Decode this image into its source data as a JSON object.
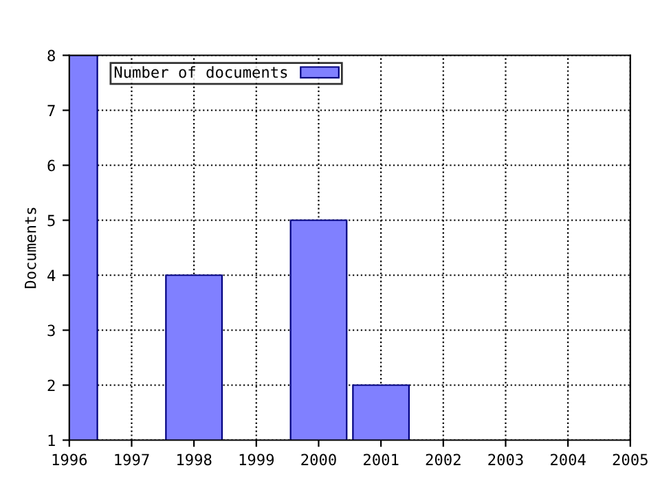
{
  "chart_data": {
    "type": "bar",
    "ylabel": "Documents",
    "x": [
      1996,
      1998,
      2000,
      2001
    ],
    "series": [
      {
        "name": "Number of documents",
        "color": "#8080ff",
        "values": [
          8,
          4,
          5,
          2
        ]
      }
    ],
    "xlim": [
      1996,
      2005
    ],
    "xticks": [
      1996,
      1997,
      1998,
      1999,
      2000,
      2001,
      2002,
      2003,
      2004,
      2005
    ],
    "ylim": [
      1,
      8
    ],
    "yticks": [
      1,
      2,
      3,
      4,
      5,
      6,
      7,
      8
    ],
    "grid": true,
    "legend": "top left"
  }
}
